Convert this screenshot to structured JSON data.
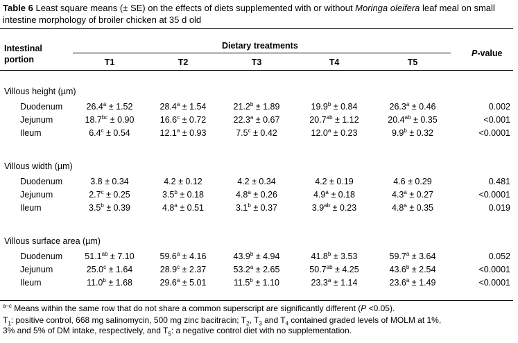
{
  "caption": {
    "label": "Table 6",
    "text_before_species": " Least square means (± SE) on the effects of diets supplemented with or without ",
    "species": "Moringa oleifera",
    "text_after_species": " leaf meal on small intestine morphology of broiler chicken at 35 d old"
  },
  "header": {
    "portion_line1": "Intestinal",
    "portion_line2": "portion",
    "group": "Dietary treatments",
    "cols": [
      "T1",
      "T2",
      "T3",
      "T4",
      "T5"
    ],
    "p_italic": "P",
    "p_rest": "-value"
  },
  "sections": [
    {
      "title": "Villous height (µm)",
      "rows": [
        {
          "name": "Duodenum",
          "cells": [
            [
              "26.4",
              "a",
              "1.52"
            ],
            [
              "28.4",
              "a",
              "1.54"
            ],
            [
              "21.2",
              "b",
              "1.89"
            ],
            [
              "19.9",
              "b",
              "0.84"
            ],
            [
              "26.3",
              "a",
              "0.46"
            ]
          ],
          "p": "0.002"
        },
        {
          "name": "Jejunum",
          "cells": [
            [
              "18.7",
              "bc",
              "0.90"
            ],
            [
              "16.6",
              "c",
              "0.72"
            ],
            [
              "22.3",
              "a",
              "0.67"
            ],
            [
              "20.7",
              "ab",
              "1.12"
            ],
            [
              "20.4",
              "ab",
              "0.35"
            ]
          ],
          "p": "<0.001"
        },
        {
          "name": "Ileum",
          "cells": [
            [
              "6.4",
              "c",
              "0.54"
            ],
            [
              "12.1",
              "a",
              "0.93"
            ],
            [
              "7.5",
              "c",
              "0.42"
            ],
            [
              "12.0",
              "a",
              "0.23"
            ],
            [
              "9.9",
              "b",
              "0.32"
            ]
          ],
          "p": "<0.0001"
        }
      ]
    },
    {
      "title": "Villous width (µm)",
      "rows": [
        {
          "name": "Duodenum",
          "cells": [
            [
              "3.8",
              "",
              "0.34"
            ],
            [
              "4.2",
              "",
              "0.12"
            ],
            [
              "4.2",
              "",
              "0.34"
            ],
            [
              "4.2",
              "",
              "0.19"
            ],
            [
              "4.6",
              "",
              "0.29"
            ]
          ],
          "p": "0.481"
        },
        {
          "name": "Jejunum",
          "cells": [
            [
              "2.7",
              "c",
              "0.25"
            ],
            [
              "3.5",
              "b",
              "0.18"
            ],
            [
              "4.8",
              "a",
              "0.26"
            ],
            [
              "4.9",
              "a",
              "0.18"
            ],
            [
              "4.3",
              "a",
              "0.27"
            ]
          ],
          "p": "<0.0001"
        },
        {
          "name": "Ileum",
          "cells": [
            [
              "3.5",
              "b",
              "0.39"
            ],
            [
              "4.8",
              "a",
              "0.51"
            ],
            [
              "3.1",
              "b",
              "0.37"
            ],
            [
              "3.9",
              "ab",
              "0.23"
            ],
            [
              "4.8",
              "a",
              "0.35"
            ]
          ],
          "p": "0.019"
        }
      ]
    },
    {
      "title": "Villous surface area (µm)",
      "rows": [
        {
          "name": "Duodenum",
          "cells": [
            [
              "51.1",
              "ab",
              "7.10"
            ],
            [
              "59.6",
              "a",
              "4.16"
            ],
            [
              "43.9",
              "b",
              "4.94"
            ],
            [
              "41.8",
              "b",
              "3.53"
            ],
            [
              "59.7",
              "a",
              "3.64"
            ]
          ],
          "p": "0.052"
        },
        {
          "name": "Jejunum",
          "cells": [
            [
              "25.0",
              "c",
              "1.64"
            ],
            [
              "28.9",
              "c",
              "2.37"
            ],
            [
              "53.2",
              "a",
              "2.65"
            ],
            [
              "50.7",
              "ab",
              "4.25"
            ],
            [
              "43.6",
              "b",
              "2.54"
            ]
          ],
          "p": "<0.0001"
        },
        {
          "name": "Ileum",
          "cells": [
            [
              "11.0",
              "b",
              "1.68"
            ],
            [
              "29.6",
              "a",
              "5.01"
            ],
            [
              "11.5",
              "b",
              "1.10"
            ],
            [
              "23.3",
              "a",
              "1.14"
            ],
            [
              "23.6",
              "a",
              "1.49"
            ]
          ],
          "p": "<0.0001"
        }
      ]
    }
  ],
  "footnotes": {
    "sig_marker": "a–c",
    "sig_text_1": " Means within the same row that do not share a common superscript are significantly different (",
    "sig_p": "P",
    "sig_text_2": " <0.05).",
    "t1": "T",
    "t1_sub": "1",
    "t1_text": ": positive control, 668 mg salinomycin, 500 mg zinc bacitracin; ",
    "t2": "T",
    "t2_sub": "2",
    "sep1": ", ",
    "t3": "T",
    "t3_sub": "3",
    "and": " and ",
    "t4": "T",
    "t4_sub": "4",
    "t234_text": " contained graded levels of MOLM at 1%,",
    "line2": "3% and 5% of DM intake, respectively, and ",
    "t5": "T",
    "t5_sub": "5",
    "t5_text": ": a negative control diet with no supplementation."
  }
}
